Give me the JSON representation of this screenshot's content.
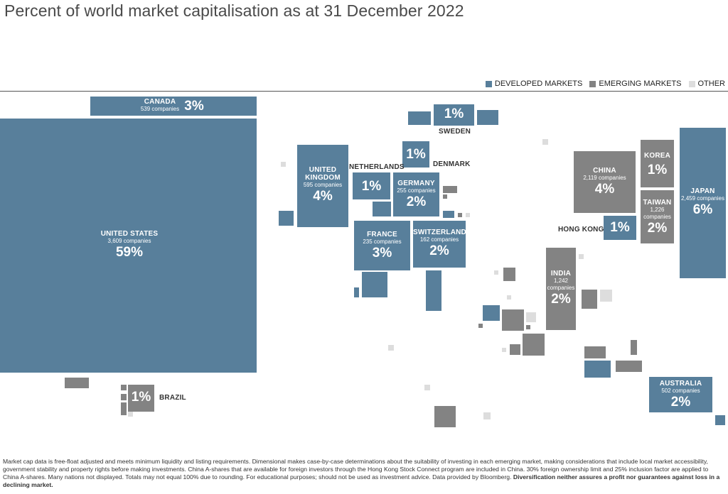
{
  "title": "Percent of world market capitalisation as at 31 December 2022",
  "legend": {
    "developed": "DEVELOPED MARKETS",
    "emerging": "EMERGING MARKETS",
    "other": "OTHER"
  },
  "colors": {
    "developed": "#587f9b",
    "emerging": "#838383",
    "other": "#dddddd"
  },
  "countries": {
    "canada": {
      "name": "CANADA",
      "companies": "539 companies",
      "pct": "3%"
    },
    "united_states": {
      "name": "UNITED STATES",
      "companies": "3,609 companies",
      "pct": "59%"
    },
    "brazil": {
      "name": "BRAZIL",
      "pct": "1%"
    },
    "sweden": {
      "name": "SWEDEN",
      "pct": "1%"
    },
    "denmark": {
      "name": "DENMARK",
      "pct": "1%"
    },
    "united_kingdom": {
      "name1": "UNITED",
      "name2": "KINGDOM",
      "companies": "595 companies",
      "pct": "4%"
    },
    "netherlands": {
      "name": "NETHERLANDS",
      "pct": "1%"
    },
    "germany": {
      "name": "GERMANY",
      "companies": "255 companies",
      "pct": "2%"
    },
    "france": {
      "name": "FRANCE",
      "companies": "235 companies",
      "pct": "3%"
    },
    "switzerland": {
      "name": "SWITZERLAND",
      "companies": "162 companies",
      "pct": "2%"
    },
    "china": {
      "name": "CHINA",
      "companies": "2,119 companies",
      "pct": "4%"
    },
    "korea": {
      "name": "KOREA",
      "pct": "1%"
    },
    "taiwan": {
      "name": "TAIWAN",
      "companies1": "1,226",
      "companies2": "companies",
      "pct": "2%"
    },
    "japan": {
      "name": "JAPAN",
      "companies": "2,459 companies",
      "pct": "6%"
    },
    "hong_kong": {
      "name": "HONG KONG",
      "pct": "1%"
    },
    "india": {
      "name": "INDIA",
      "companies1": "1,242",
      "companies2": "companies",
      "pct": "2%"
    },
    "australia": {
      "name": "AUSTRALIA",
      "companies": "502 companies",
      "pct": "2%"
    }
  },
  "footnote": {
    "text": "Market cap data is free-float adjusted and meets minimum liquidity and listing requirements. Dimensional makes case-by-case determinations about the suitability of investing in each emerging market, making considerations that include local market accessibility, government stability and property rights before making investments. China A-shares that are available for foreign investors through the Hong Kong Stock Connect program are included in China. 30% foreign ownership limit and 25% inclusion factor are applied to China A-shares. Many nations not displayed. Totals may not equal 100% due to rounding. For educational purposes; should not be used as investment advice. Data provided by Bloomberg. ",
    "bold": "Diversification neither assures a profit nor guarantees against loss in a declining market."
  }
}
